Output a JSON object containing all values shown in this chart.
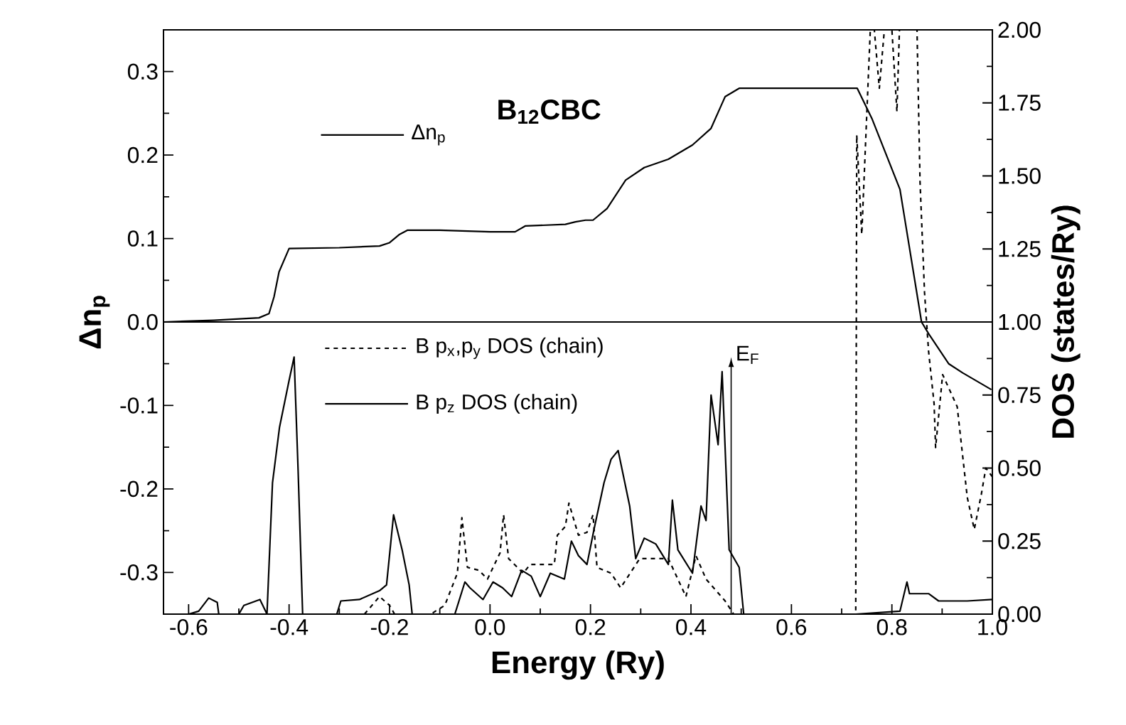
{
  "chart_data": {
    "type": "line",
    "title": "**B$_{12}$CBC**",
    "xlabel": "Energy (Ry)",
    "ylabel": "Δn$_{p}$",
    "y2label": "DOS (states/Ry)",
    "xlim": [
      -0.65,
      1.0
    ],
    "ylim": [
      -0.35,
      0.35
    ],
    "y2lim": [
      0,
      2.0
    ],
    "xticks": [
      -0.6,
      -0.4,
      -0.2,
      {
        "value": 0,
        "label": "0.0"
      },
      0.2,
      0.4,
      0.6,
      0.8,
      {
        "value": 1.0,
        "label": "1.0"
      }
    ],
    "yticks": [
      -0.3,
      -0.2,
      -0.1,
      {
        "value": 0,
        "label": "0.0"
      },
      0.1,
      0.2,
      0.3
    ],
    "y2ticks": [
      {
        "value": 0,
        "label": "0.00"
      },
      {
        "value": 0.25,
        "label": "0.25"
      },
      {
        "value": 0.5,
        "label": "0.50"
      },
      {
        "value": 0.75,
        "label": "0.75"
      },
      {
        "value": 1.0,
        "label": "1.00"
      },
      {
        "value": 1.25,
        "label": "1.25"
      },
      {
        "value": 1.5,
        "label": "1.50"
      },
      {
        "value": 1.75,
        "label": "1.75"
      },
      {
        "value": 2.0,
        "label": "2.00"
      }
    ],
    "legend": "left",
    "ref_lines": [
      {
        "axis": "y",
        "value": 0
      },
      {
        "axis": "x",
        "value": 0.48,
        "label": "E$_{F}$"
      }
    ],
    "series": [
      {
        "name": "Δn$_{p}$",
        "color": "#000000",
        "line_style": "solid",
        "x": [
          -0.65,
          -0.55,
          -0.46,
          -0.44,
          -0.43,
          -0.42,
          -0.4,
          -0.3,
          -0.22,
          -0.2,
          -0.18,
          -0.164,
          -0.1,
          0.0,
          0.05,
          0.07,
          0.15,
          0.17,
          0.19,
          0.205,
          0.233,
          0.27,
          0.307,
          0.355,
          0.403,
          0.44,
          0.468,
          0.496,
          0.731,
          0.76,
          0.816,
          0.859,
          0.873,
          0.913,
          0.941,
          0.998
        ],
        "values": [
          0,
          0.002,
          0.005,
          0.01,
          0.03,
          0.06,
          0.088,
          0.089,
          0.091,
          0.095,
          0.105,
          0.11,
          0.11,
          0.108,
          0.108,
          0.115,
          0.117,
          0.12,
          0.122,
          0.122,
          0.136,
          0.17,
          0.185,
          0.195,
          0.212,
          0.232,
          0.27,
          0.28,
          0.28,
          0.244,
          0.159,
          0.0,
          -0.014,
          -0.05,
          -0.061,
          -0.081
        ]
      },
      {
        "name": "B p$_{x}$,p$_{y}$ DOS (chain)",
        "color": "#000000",
        "line_style": "dashed",
        "axis": "y2",
        "x": [
          -0.25,
          -0.22,
          -0.2,
          -0.19,
          -0.118,
          -0.09,
          -0.065,
          -0.056,
          -0.045,
          -0.022,
          -0.005,
          0.02,
          0.027,
          0.037,
          0.066,
          0.08,
          0.128,
          0.134,
          0.15,
          0.157,
          0.176,
          0.193,
          0.205,
          0.213,
          0.241,
          0.26,
          0.298,
          0.355,
          0.39,
          0.41,
          0.43,
          0.468,
          0.485,
          0.728,
          0.73,
          0.74,
          0.757,
          0.765,
          0.775,
          0.785,
          0.8,
          0.81,
          0.815,
          0.85,
          0.856,
          0.865,
          0.873,
          0.884,
          0.887,
          0.901,
          0.93,
          0.95,
          0.964,
          0.978,
          0.987,
          1.0
        ],
        "values": [
          0,
          0.06,
          0.03,
          0,
          0,
          0.03,
          0.14,
          0.33,
          0.16,
          0.15,
          0.12,
          0.21,
          0.34,
          0.19,
          0.14,
          0.17,
          0.17,
          0.27,
          0.3,
          0.38,
          0.27,
          0.28,
          0.34,
          0.16,
          0.14,
          0.09,
          0.19,
          0.19,
          0.06,
          0.2,
          0.12,
          0.045,
          0,
          0,
          1.64,
          1.3,
          2.0,
          2.0,
          1.8,
          2.0,
          2.0,
          1.72,
          2.0,
          2.0,
          1.48,
          1.1,
          0.9,
          0.72,
          0.57,
          0.82,
          0.71,
          0.4,
          0.29,
          0.41,
          0.5,
          0.47
        ]
      },
      {
        "name": "B p$_{z}$ DOS (chain)",
        "color": "#000000",
        "line_style": "solid",
        "axis": "y2",
        "x": [
          -0.65,
          -0.6,
          -0.58,
          -0.56,
          -0.543,
          -0.54,
          -0.5,
          -0.49,
          -0.458,
          -0.444,
          -0.433,
          -0.419,
          -0.4,
          -0.39,
          -0.382,
          -0.373,
          -0.305,
          -0.297,
          -0.26,
          -0.22,
          -0.206,
          -0.192,
          -0.175,
          -0.161,
          -0.155,
          -0.07,
          -0.05,
          -0.04,
          -0.014,
          0.006,
          0.025,
          0.043,
          0.063,
          0.082,
          0.1,
          0.12,
          0.148,
          0.162,
          0.176,
          0.193,
          0.207,
          0.227,
          0.241,
          0.255,
          0.278,
          0.29,
          0.307,
          0.33,
          0.355,
          0.363,
          0.374,
          0.403,
          0.42,
          0.43,
          0.44,
          0.454,
          0.462,
          0.476,
          0.496,
          0.505,
          0.728,
          0.816,
          0.83,
          0.835,
          0.873,
          0.893,
          0.95,
          1.0
        ],
        "values": [
          0,
          0,
          0.01,
          0.055,
          0.04,
          0,
          0,
          0.03,
          0.05,
          0,
          0.45,
          0.64,
          0.8,
          0.88,
          0.49,
          0,
          0,
          0.045,
          0.05,
          0.08,
          0.1,
          0.34,
          0.22,
          0.1,
          0,
          0,
          0.11,
          0.09,
          0.05,
          0.11,
          0.09,
          0.06,
          0.15,
          0.13,
          0.06,
          0.14,
          0.12,
          0.25,
          0.2,
          0.17,
          0.29,
          0.45,
          0.53,
          0.56,
          0.37,
          0.19,
          0.26,
          0.24,
          0.17,
          0.39,
          0.22,
          0.14,
          0.37,
          0.32,
          0.75,
          0.58,
          0.83,
          0.22,
          0.16,
          0,
          0,
          0.01,
          0.11,
          0.07,
          0.07,
          0.045,
          0.045,
          0.05
        ]
      }
    ]
  }
}
